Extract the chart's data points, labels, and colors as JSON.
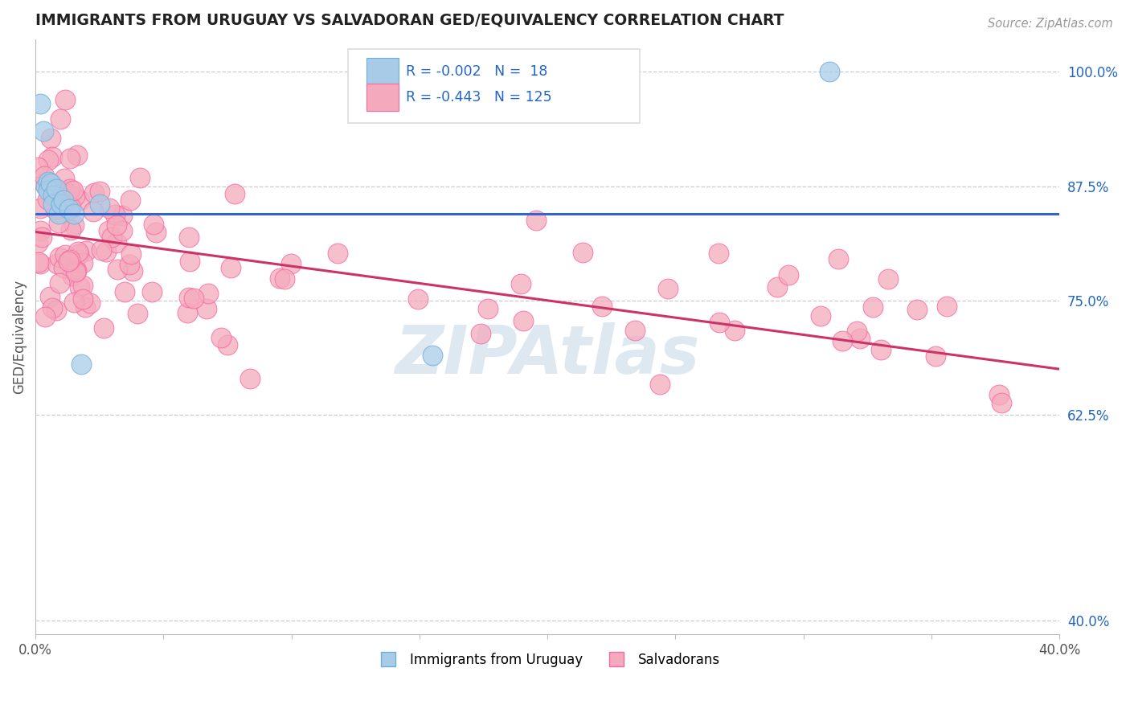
{
  "title": "IMMIGRANTS FROM URUGUAY VS SALVADORAN GED/EQUIVALENCY CORRELATION CHART",
  "source": "Source: ZipAtlas.com",
  "ylabel": "GED/Equivalency",
  "xlim": [
    0.0,
    0.4
  ],
  "ylim": [
    0.385,
    1.035
  ],
  "yticks": [
    1.0,
    0.875,
    0.75,
    0.625
  ],
  "ytick_labels": [
    "100.0%",
    "87.5%",
    "75.0%",
    "62.5%"
  ],
  "ytick_right_extra": [
    0.4
  ],
  "ytick_right_extra_labels": [
    "40.0%"
  ],
  "xticks": [
    0.0,
    0.05,
    0.1,
    0.15,
    0.2,
    0.25,
    0.3,
    0.35,
    0.4
  ],
  "xtick_labels": [
    "0.0%",
    "",
    "",
    "",
    "",
    "",
    "",
    "",
    "40.0%"
  ],
  "legend_R1": "-0.002",
  "legend_N1": "18",
  "legend_R2": "-0.443",
  "legend_N2": "125",
  "blue_color": "#a8cce8",
  "pink_color": "#f4aabc",
  "blue_edge": "#6baed6",
  "pink_edge": "#f768a1",
  "trend_blue": "#3366cc",
  "trend_pink": "#cc3366",
  "watermark": "ZIPAtlas",
  "watermark_color": "#dde8f0",
  "bg_color": "#ffffff",
  "blue_trend_y": 0.845,
  "pink_trend_x0": 0.0,
  "pink_trend_y0": 0.825,
  "pink_trend_x1": 0.4,
  "pink_trend_y1": 0.675
}
